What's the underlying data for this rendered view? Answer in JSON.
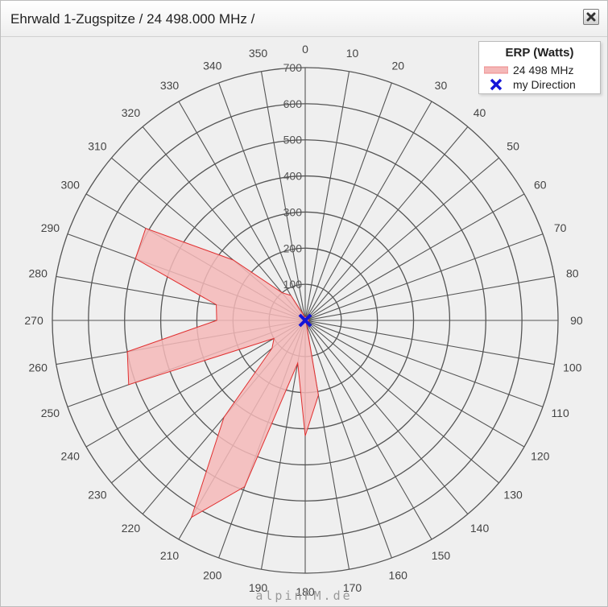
{
  "window": {
    "title": "Ehrwald 1-Zugspitze / 24 498.000 MHz /",
    "close_icon": "close-icon"
  },
  "legend": {
    "title": "ERP (Watts)",
    "series_label": "24 498 MHz",
    "direction_label": "my Direction"
  },
  "footer": {
    "watermark": "alpinFM.de"
  },
  "colors": {
    "fill": "#f4b8b8",
    "stroke": "#e03030",
    "direction": "#1414d8",
    "grid": "#555555",
    "background": "#efefef"
  },
  "chart_data": {
    "type": "polar-area",
    "angle_unit": "degrees",
    "angle_ticks": [
      0,
      10,
      20,
      30,
      40,
      50,
      60,
      70,
      80,
      90,
      100,
      110,
      120,
      130,
      140,
      150,
      160,
      170,
      180,
      190,
      200,
      210,
      220,
      230,
      240,
      250,
      260,
      270,
      280,
      290,
      300,
      310,
      320,
      330,
      340,
      350
    ],
    "radial_ticks": [
      100,
      200,
      300,
      400,
      500,
      600,
      700
    ],
    "radial_range": [
      0,
      700
    ],
    "series": [
      {
        "name": "24 498 MHz",
        "points": [
          {
            "azimuth": 0,
            "value": 10
          },
          {
            "azimuth": 10,
            "value": 10
          },
          {
            "azimuth": 20,
            "value": 10
          },
          {
            "azimuth": 30,
            "value": 10
          },
          {
            "azimuth": 40,
            "value": 10
          },
          {
            "azimuth": 50,
            "value": 10
          },
          {
            "azimuth": 60,
            "value": 10
          },
          {
            "azimuth": 70,
            "value": 10
          },
          {
            "azimuth": 80,
            "value": 10
          },
          {
            "azimuth": 90,
            "value": 10
          },
          {
            "azimuth": 100,
            "value": 10
          },
          {
            "azimuth": 110,
            "value": 10
          },
          {
            "azimuth": 120,
            "value": 10
          },
          {
            "azimuth": 130,
            "value": 10
          },
          {
            "azimuth": 140,
            "value": 10
          },
          {
            "azimuth": 150,
            "value": 10
          },
          {
            "azimuth": 160,
            "value": 10
          },
          {
            "azimuth": 170,
            "value": 210
          },
          {
            "azimuth": 180,
            "value": 320
          },
          {
            "azimuth": 190,
            "value": 120
          },
          {
            "azimuth": 200,
            "value": 490
          },
          {
            "azimuth": 210,
            "value": 630
          },
          {
            "azimuth": 220,
            "value": 350
          },
          {
            "azimuth": 230,
            "value": 120
          },
          {
            "azimuth": 240,
            "value": 100
          },
          {
            "azimuth": 250,
            "value": 520
          },
          {
            "azimuth": 260,
            "value": 500
          },
          {
            "azimuth": 270,
            "value": 245
          },
          {
            "azimuth": 280,
            "value": 250
          },
          {
            "azimuth": 290,
            "value": 500
          },
          {
            "azimuth": 300,
            "value": 510
          },
          {
            "azimuth": 310,
            "value": 260
          },
          {
            "azimuth": 320,
            "value": 100
          },
          {
            "azimuth": 330,
            "value": 80
          },
          {
            "azimuth": 340,
            "value": 20
          },
          {
            "azimuth": 350,
            "value": 10
          }
        ]
      }
    ],
    "my_direction": {
      "azimuth": 0,
      "value": 0
    },
    "legend_title": "ERP (Watts)",
    "legend_position": "top-right",
    "grid": true
  }
}
